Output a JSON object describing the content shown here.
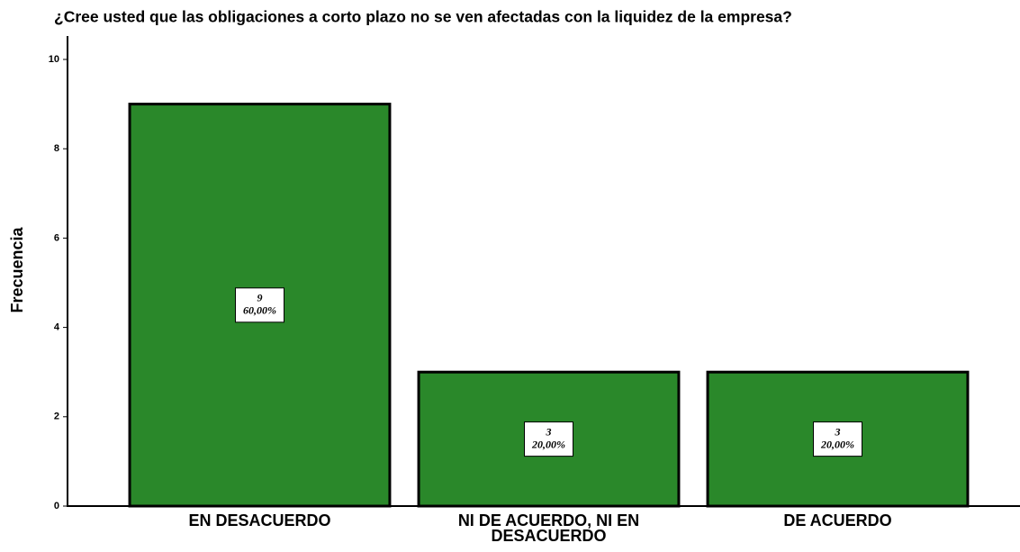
{
  "chart_data": {
    "type": "bar",
    "title": "¿Cree usted que las obligaciones a corto plazo no se ven afectadas con la liquidez de la empresa?",
    "ylabel": "Frecuencia",
    "categories": [
      "EN DESACUERDO",
      "NI DE ACUERDO, NI EN DESACUERDO",
      "DE ACUERDO"
    ],
    "values": [
      9,
      3,
      3
    ],
    "percents": [
      60,
      20,
      20
    ],
    "percent_labels": [
      "60,00%",
      "20,00%",
      "20,00%"
    ],
    "color": "#2a882a",
    "ylim": [
      0,
      10
    ],
    "yticks": [
      0,
      2,
      4,
      6,
      8,
      10
    ],
    "grid": false
  }
}
